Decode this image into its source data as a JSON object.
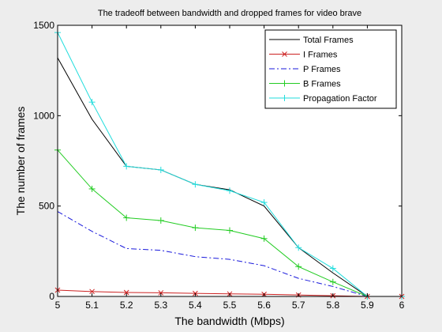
{
  "chart_data": {
    "type": "line",
    "title": "The tradeoff between bandwidth and dropped frames for video brave",
    "xlabel": "The bandwidth (Mbps)",
    "ylabel": "The number of frames",
    "xlim": [
      5,
      6
    ],
    "ylim": [
      0,
      1500
    ],
    "x_ticks": [
      "5",
      "5.1",
      "5.2",
      "5.3",
      "5.4",
      "5.5",
      "5.6",
      "5.7",
      "5.8",
      "5.9",
      "6"
    ],
    "y_ticks": [
      "0",
      "500",
      "1000",
      "1500"
    ],
    "legend_position": "top-right",
    "grid": false,
    "x": [
      5,
      5.1,
      5.2,
      5.3,
      5.4,
      5.5,
      5.6,
      5.7,
      5.8,
      5.9,
      6
    ],
    "series": [
      {
        "name": "Total Frames",
        "color": "#000000",
        "line_style": "solid",
        "marker": "none",
        "values": [
          1320,
          980,
          720,
          700,
          620,
          590,
          500,
          270,
          130,
          0,
          0
        ]
      },
      {
        "name": "I Frames",
        "color": "#cc2222",
        "line_style": "solid",
        "marker": "x",
        "values": [
          35,
          27,
          22,
          20,
          17,
          14,
          12,
          8,
          4,
          0,
          0
        ]
      },
      {
        "name": "P Frames",
        "color": "#1a1adc",
        "line_style": "dashdot",
        "marker": "none",
        "values": [
          470,
          360,
          265,
          255,
          220,
          205,
          170,
          100,
          55,
          0,
          0
        ]
      },
      {
        "name": "B Frames",
        "color": "#22cc22",
        "line_style": "solid",
        "marker": "plus",
        "values": [
          810,
          595,
          435,
          420,
          380,
          365,
          320,
          165,
          80,
          0,
          0
        ]
      },
      {
        "name": "Propagation Factor",
        "color": "#22dddd",
        "line_style": "solid",
        "marker": "plus",
        "values": [
          1460,
          1075,
          720,
          700,
          620,
          585,
          520,
          270,
          155,
          0,
          0
        ]
      }
    ]
  }
}
